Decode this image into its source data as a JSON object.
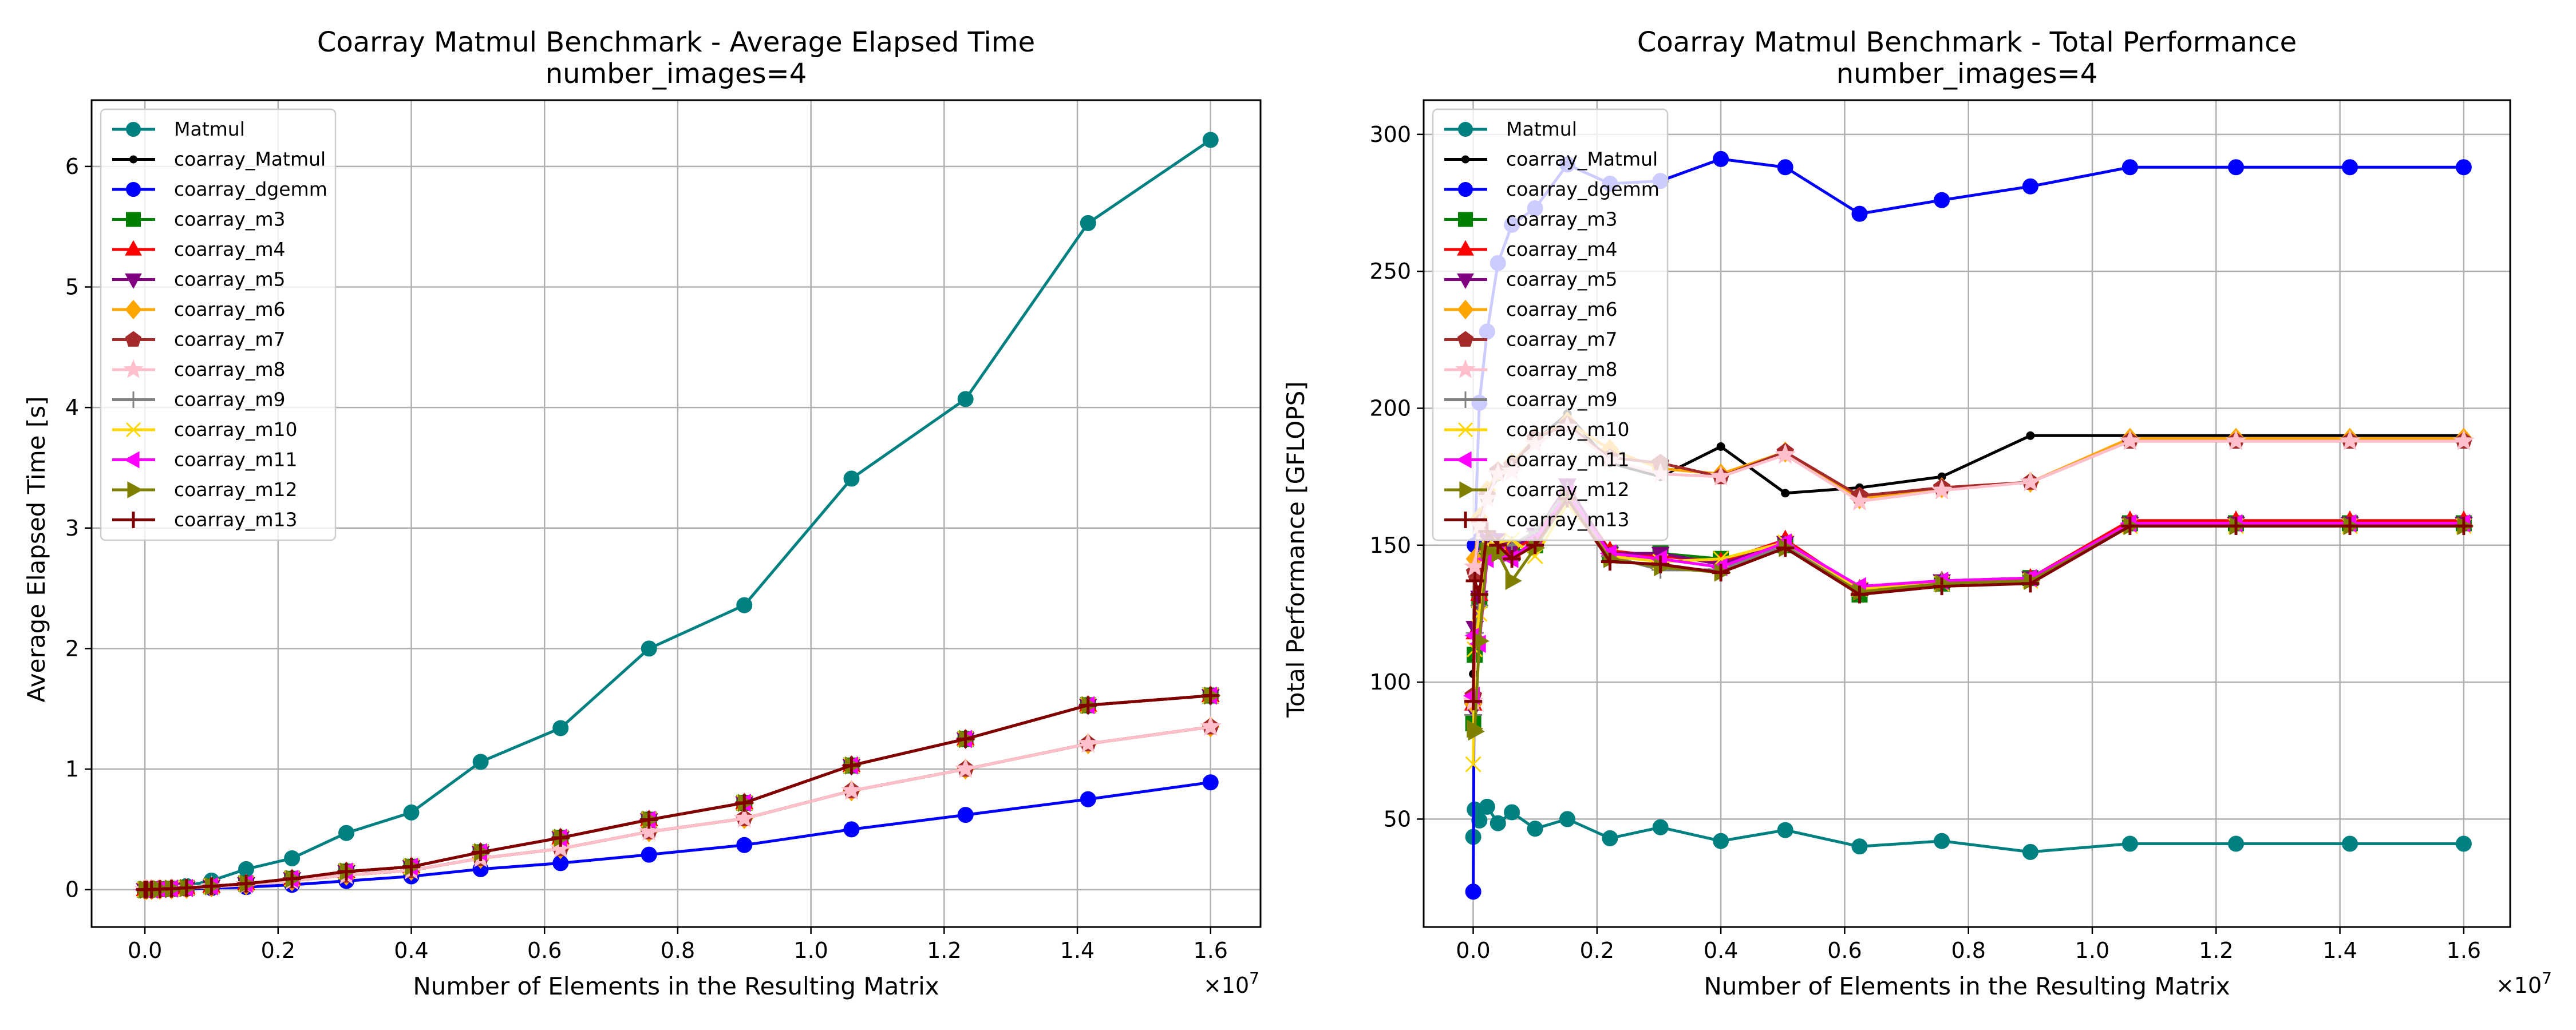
{
  "colors": {
    "Matmul": "#008080",
    "coarray_Matmul": "#000000",
    "coarray_dgemm": "#0000ff",
    "coarray_m3": "#008000",
    "coarray_m4": "#ff0000",
    "coarray_m5": "#800080",
    "coarray_m6": "#ffa500",
    "coarray_m7": "#a52a2a",
    "coarray_m8": "#ffc0cb",
    "coarray_m9": "#808080",
    "coarray_m10": "#ffd700",
    "coarray_m11": "#ff00ff",
    "coarray_m12": "#808000",
    "coarray_m13": "#800000"
  },
  "markers": {
    "Matmul": "circle",
    "coarray_Matmul": "dot",
    "coarray_dgemm": "circle",
    "coarray_m3": "square",
    "coarray_m4": "triangle-up",
    "coarray_m5": "triangle-down",
    "coarray_m6": "diamond",
    "coarray_m7": "pentagon",
    "coarray_m8": "star",
    "coarray_m9": "plus",
    "coarray_m10": "x",
    "coarray_m11": "triangle-left",
    "coarray_m12": "triangle-right",
    "coarray_m13": "plus-thick"
  },
  "chart_data": [
    {
      "type": "line",
      "title": "Coarray Matmul Benchmark - Average Elapsed Time",
      "subtitle": "number_images=4",
      "xlabel": "Number of Elements in the Resulting Matrix",
      "ylabel": "Average Elapsed Time [s]",
      "x_offset_label": "×10^7",
      "xlim": [
        -0.08,
        1.675
      ],
      "ylim": [
        -0.31,
        6.55
      ],
      "xticks": [
        0.0,
        0.2,
        0.4,
        0.6,
        0.8,
        1.0,
        1.2,
        1.4,
        1.6
      ],
      "xtick_labels": [
        "0.0",
        "0.2",
        "0.4",
        "0.6",
        "0.8",
        "1.0",
        "1.2",
        "1.4",
        "1.6"
      ],
      "yticks": [
        0,
        1,
        2,
        3,
        4,
        5,
        6
      ],
      "ytick_labels": [
        "0",
        "1",
        "2",
        "3",
        "4",
        "5",
        "6"
      ],
      "grid": true,
      "legend_position": "top-left",
      "x": [
        0.0001,
        0.0025,
        0.01,
        0.0225,
        0.04,
        0.0625,
        0.1,
        0.1521,
        0.2209,
        0.3025,
        0.4,
        0.5041,
        0.6241,
        0.7569,
        0.9,
        1.0609,
        1.2321,
        1.4161,
        1.6
      ],
      "series": [
        {
          "name": "Matmul",
          "values": [
            0.0,
            0.0,
            0.001,
            0.003,
            0.01,
            0.03,
            0.075,
            0.17,
            0.26,
            0.47,
            0.64,
            1.06,
            1.34,
            2.0,
            2.36,
            3.41,
            4.07,
            5.53,
            6.22
          ]
        },
        {
          "name": "coarray_Matmul",
          "values": [
            0.0,
            0.0,
            0.001,
            0.003,
            0.006,
            0.011,
            0.023,
            0.04,
            0.073,
            0.12,
            0.16,
            0.26,
            0.34,
            0.48,
            0.59,
            0.82,
            1.0,
            1.21,
            1.35
          ]
        },
        {
          "name": "coarray_dgemm",
          "values": [
            0.0,
            0.0,
            0.001,
            0.002,
            0.004,
            0.007,
            0.013,
            0.021,
            0.04,
            0.072,
            0.11,
            0.17,
            0.22,
            0.29,
            0.37,
            0.5,
            0.62,
            0.75,
            0.89
          ]
        },
        {
          "name": "coarray_m3",
          "values": [
            0.0,
            0.0,
            0.001,
            0.004,
            0.008,
            0.014,
            0.028,
            0.05,
            0.09,
            0.15,
            0.19,
            0.31,
            0.43,
            0.58,
            0.72,
            1.03,
            1.25,
            1.53,
            1.61
          ]
        },
        {
          "name": "coarray_m4",
          "values": [
            0.0,
            0.0,
            0.001,
            0.004,
            0.008,
            0.014,
            0.028,
            0.05,
            0.09,
            0.15,
            0.19,
            0.31,
            0.43,
            0.58,
            0.72,
            1.03,
            1.25,
            1.53,
            1.61
          ]
        },
        {
          "name": "coarray_m5",
          "values": [
            0.0,
            0.0,
            0.001,
            0.004,
            0.008,
            0.014,
            0.028,
            0.05,
            0.09,
            0.15,
            0.19,
            0.31,
            0.43,
            0.58,
            0.72,
            1.03,
            1.25,
            1.53,
            1.61
          ]
        },
        {
          "name": "coarray_m6",
          "values": [
            0.0,
            0.0,
            0.001,
            0.003,
            0.006,
            0.011,
            0.023,
            0.04,
            0.073,
            0.12,
            0.16,
            0.26,
            0.34,
            0.48,
            0.59,
            0.82,
            1.0,
            1.21,
            1.35
          ]
        },
        {
          "name": "coarray_m7",
          "values": [
            0.0,
            0.0,
            0.001,
            0.003,
            0.006,
            0.011,
            0.023,
            0.04,
            0.073,
            0.12,
            0.16,
            0.26,
            0.34,
            0.48,
            0.59,
            0.82,
            1.0,
            1.21,
            1.35
          ]
        },
        {
          "name": "coarray_m8",
          "values": [
            0.0,
            0.0,
            0.001,
            0.003,
            0.006,
            0.011,
            0.023,
            0.04,
            0.073,
            0.12,
            0.16,
            0.26,
            0.34,
            0.48,
            0.59,
            0.82,
            1.0,
            1.21,
            1.35
          ]
        },
        {
          "name": "coarray_m9",
          "values": [
            0.0,
            0.0,
            0.001,
            0.004,
            0.008,
            0.014,
            0.028,
            0.05,
            0.09,
            0.15,
            0.19,
            0.31,
            0.43,
            0.58,
            0.72,
            1.03,
            1.25,
            1.53,
            1.61
          ]
        },
        {
          "name": "coarray_m10",
          "values": [
            0.0,
            0.0,
            0.001,
            0.004,
            0.008,
            0.014,
            0.028,
            0.05,
            0.09,
            0.15,
            0.19,
            0.31,
            0.43,
            0.58,
            0.72,
            1.03,
            1.25,
            1.53,
            1.61
          ]
        },
        {
          "name": "coarray_m11",
          "values": [
            0.0,
            0.0,
            0.001,
            0.004,
            0.008,
            0.014,
            0.028,
            0.05,
            0.09,
            0.15,
            0.19,
            0.31,
            0.43,
            0.58,
            0.72,
            1.03,
            1.25,
            1.53,
            1.61
          ]
        },
        {
          "name": "coarray_m12",
          "values": [
            0.0,
            0.0,
            0.001,
            0.004,
            0.008,
            0.014,
            0.028,
            0.05,
            0.09,
            0.15,
            0.19,
            0.31,
            0.43,
            0.58,
            0.72,
            1.03,
            1.25,
            1.53,
            1.61
          ]
        },
        {
          "name": "coarray_m13",
          "values": [
            0.0,
            0.0,
            0.001,
            0.004,
            0.008,
            0.014,
            0.028,
            0.05,
            0.09,
            0.15,
            0.19,
            0.31,
            0.43,
            0.58,
            0.72,
            1.03,
            1.25,
            1.53,
            1.61
          ]
        }
      ]
    },
    {
      "type": "line",
      "title": "Coarray Matmul Benchmark - Total Performance",
      "subtitle": "number_images=4",
      "xlabel": "Number of Elements in the Resulting Matrix",
      "ylabel": "Total Performance [GFLOPS]",
      "x_offset_label": "×10^7",
      "xlim": [
        -0.08,
        1.675
      ],
      "ylim": [
        10.6,
        312.5
      ],
      "xticks": [
        0.0,
        0.2,
        0.4,
        0.6,
        0.8,
        1.0,
        1.2,
        1.4,
        1.6
      ],
      "xtick_labels": [
        "0.0",
        "0.2",
        "0.4",
        "0.6",
        "0.8",
        "1.0",
        "1.2",
        "1.4",
        "1.6"
      ],
      "yticks": [
        50,
        100,
        150,
        200,
        250,
        300
      ],
      "ytick_labels": [
        "50",
        "100",
        "150",
        "200",
        "250",
        "300"
      ],
      "grid": true,
      "legend_position": "top-left",
      "x": [
        0.0001,
        0.0025,
        0.01,
        0.0225,
        0.04,
        0.0625,
        0.1,
        0.1521,
        0.2209,
        0.3025,
        0.4,
        0.5041,
        0.6241,
        0.7569,
        0.9,
        1.0609,
        1.2321,
        1.4161,
        1.6
      ],
      "series": [
        {
          "name": "Matmul",
          "values": [
            43.5,
            53.5,
            49.5,
            54.5,
            48.5,
            52.5,
            46.5,
            50,
            43,
            47,
            42,
            46,
            40,
            42,
            38,
            41,
            41,
            41,
            41
          ]
        },
        {
          "name": "coarray_Matmul",
          "values": [
            103,
            150,
            160,
            168,
            175,
            180,
            188,
            198,
            180,
            175,
            186,
            169,
            171,
            175,
            190,
            190,
            190,
            190,
            190
          ]
        },
        {
          "name": "coarray_dgemm",
          "values": [
            23.5,
            150,
            202,
            228,
            253,
            267,
            273,
            289,
            282,
            283,
            291,
            288,
            271,
            276,
            281,
            288,
            288,
            288,
            288
          ]
        },
        {
          "name": "coarray_m3",
          "values": [
            85,
            110,
            130,
            148,
            148,
            147,
            150,
            168,
            147,
            147,
            145,
            150,
            132,
            136,
            138,
            158,
            158,
            158,
            158
          ]
        },
        {
          "name": "coarray_m4",
          "values": [
            92,
            118,
            132,
            150,
            150,
            148,
            153,
            171,
            148,
            146,
            144,
            152,
            134,
            137,
            138,
            159,
            159,
            159,
            159
          ]
        },
        {
          "name": "coarray_m5",
          "values": [
            90,
            120,
            131,
            152,
            152,
            149,
            154,
            172,
            147,
            147,
            143,
            151,
            134,
            137,
            138,
            158,
            158,
            158,
            158
          ]
        },
        {
          "name": "coarray_m6",
          "values": [
            92,
            145,
            160,
            170,
            177,
            180,
            189,
            195,
            185,
            178,
            176,
            184,
            167,
            171,
            173,
            189,
            189,
            189,
            189
          ]
        },
        {
          "name": "coarray_m7",
          "values": [
            95,
            140,
            158,
            168,
            177,
            179,
            189,
            194,
            182,
            180,
            175,
            184,
            168,
            171,
            173,
            188,
            188,
            188,
            188
          ]
        },
        {
          "name": "coarray_m8",
          "values": [
            93,
            142,
            157,
            167,
            176,
            177,
            187,
            193,
            181,
            176,
            175,
            183,
            166,
            170,
            173,
            188,
            188,
            188,
            188
          ]
        },
        {
          "name": "coarray_m9",
          "values": [
            88,
            118,
            128,
            148,
            150,
            150,
            155,
            170,
            146,
            141,
            141,
            150,
            134,
            137,
            137,
            157,
            157,
            157,
            157
          ]
        },
        {
          "name": "coarray_m10",
          "values": [
            70,
            112,
            125,
            150,
            151,
            152,
            146,
            165,
            146,
            144,
            145,
            151,
            134,
            136,
            137,
            157,
            157,
            157,
            157
          ]
        },
        {
          "name": "coarray_m11",
          "values": [
            95,
            117,
            114,
            145,
            147,
            145,
            152,
            169,
            147,
            145,
            142,
            151,
            135,
            137,
            138,
            158,
            158,
            158,
            158
          ]
        },
        {
          "name": "coarray_m12",
          "values": [
            83,
            82,
            115,
            148,
            147,
            137,
            149,
            167,
            145,
            142,
            140,
            149,
            133,
            136,
            137,
            157,
            157,
            157,
            157
          ]
        },
        {
          "name": "coarray_m13",
          "values": [
            93,
            137,
            132,
            155,
            150,
            145,
            150,
            167,
            144,
            143,
            140,
            149,
            132,
            135,
            136,
            157,
            157,
            157,
            157
          ]
        }
      ]
    }
  ]
}
